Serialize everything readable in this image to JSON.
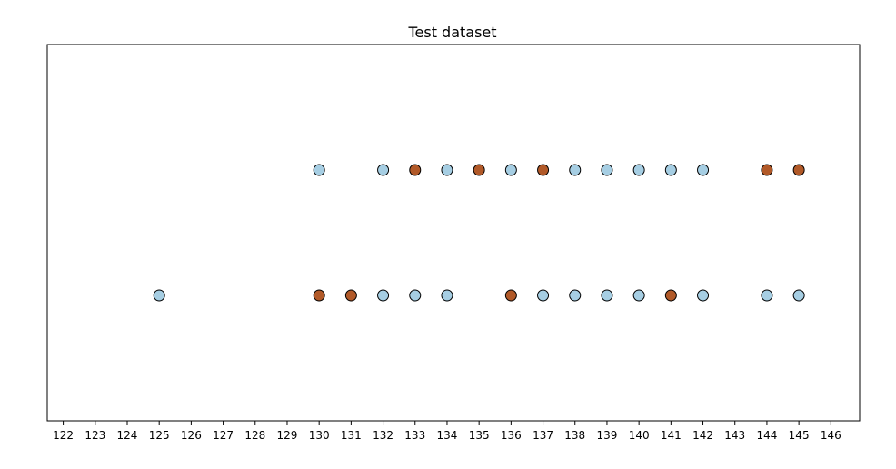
{
  "chart_data": {
    "type": "scatter",
    "title": "Test dataset",
    "xlabel": "",
    "ylabel": "",
    "xlim": [
      121.5,
      146.9
    ],
    "ylim": [
      -0.5,
      2.5
    ],
    "y_ticks_visible": false,
    "grid": false,
    "x_ticks": [
      122,
      123,
      124,
      125,
      126,
      127,
      128,
      129,
      130,
      131,
      132,
      133,
      134,
      135,
      136,
      137,
      138,
      139,
      140,
      141,
      142,
      143,
      144,
      145,
      146
    ],
    "x_tick_labels": [
      "122",
      "123",
      "124",
      "125",
      "126",
      "127",
      "128",
      "129",
      "130",
      "131",
      "132",
      "133",
      "134",
      "135",
      "136",
      "137",
      "138",
      "139",
      "140",
      "141",
      "142",
      "143",
      "144",
      "145",
      "146"
    ],
    "class_colors": {
      "light": "#a6cee3",
      "dark": "#b15928"
    },
    "marker_edge_color": "#000000",
    "series": [
      {
        "class": "light",
        "points": [
          {
            "x": 130,
            "y": 1.5
          },
          {
            "x": 132,
            "y": 1.5
          },
          {
            "x": 134,
            "y": 1.5
          },
          {
            "x": 136,
            "y": 1.5
          },
          {
            "x": 138,
            "y": 1.5
          },
          {
            "x": 139,
            "y": 1.5
          },
          {
            "x": 140,
            "y": 1.5
          },
          {
            "x": 141,
            "y": 1.5
          },
          {
            "x": 142,
            "y": 1.5
          },
          {
            "x": 125,
            "y": 0.5
          },
          {
            "x": 132,
            "y": 0.5
          },
          {
            "x": 133,
            "y": 0.5
          },
          {
            "x": 134,
            "y": 0.5
          },
          {
            "x": 137,
            "y": 0.5
          },
          {
            "x": 138,
            "y": 0.5
          },
          {
            "x": 139,
            "y": 0.5
          },
          {
            "x": 140,
            "y": 0.5
          },
          {
            "x": 142,
            "y": 0.5
          },
          {
            "x": 144,
            "y": 0.5
          },
          {
            "x": 145,
            "y": 0.5
          }
        ]
      },
      {
        "class": "dark",
        "points": [
          {
            "x": 133,
            "y": 1.5
          },
          {
            "x": 135,
            "y": 1.5
          },
          {
            "x": 137,
            "y": 1.5
          },
          {
            "x": 144,
            "y": 1.5
          },
          {
            "x": 145,
            "y": 1.5
          },
          {
            "x": 130,
            "y": 0.5
          },
          {
            "x": 131,
            "y": 0.5
          },
          {
            "x": 136,
            "y": 0.5
          },
          {
            "x": 141,
            "y": 0.5
          }
        ]
      }
    ]
  }
}
